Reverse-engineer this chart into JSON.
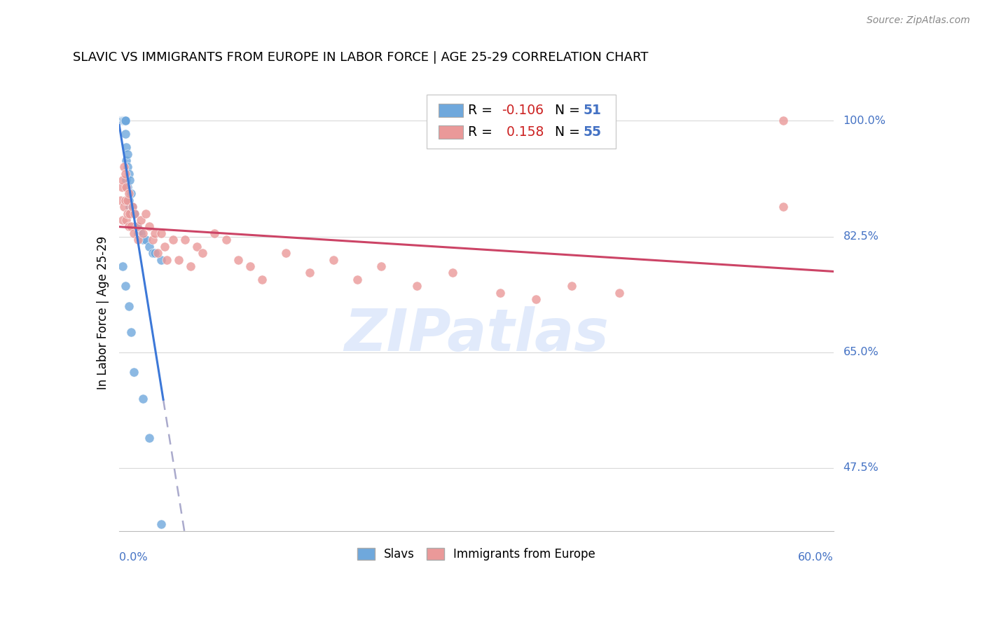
{
  "title": "SLAVIC VS IMMIGRANTS FROM EUROPE IN LABOR FORCE | AGE 25-29 CORRELATION CHART",
  "source": "Source: ZipAtlas.com",
  "ylabel": "In Labor Force | Age 25-29",
  "ytick_labels": [
    "100.0%",
    "82.5%",
    "65.0%",
    "47.5%"
  ],
  "ytick_values": [
    1.0,
    0.825,
    0.65,
    0.475
  ],
  "xmin": 0.0,
  "xmax": 0.6,
  "ymin": 0.38,
  "ymax": 1.04,
  "slavs_color": "#6fa8dc",
  "immigrants_color": "#ea9999",
  "slavs_line_color": "#3c78d8",
  "immigrants_line_color": "#cc4466",
  "watermark_color": "#c9daf8",
  "grid_color": "#d9d9d9",
  "right_label_color": "#4472c4",
  "source_color": "#888888"
}
